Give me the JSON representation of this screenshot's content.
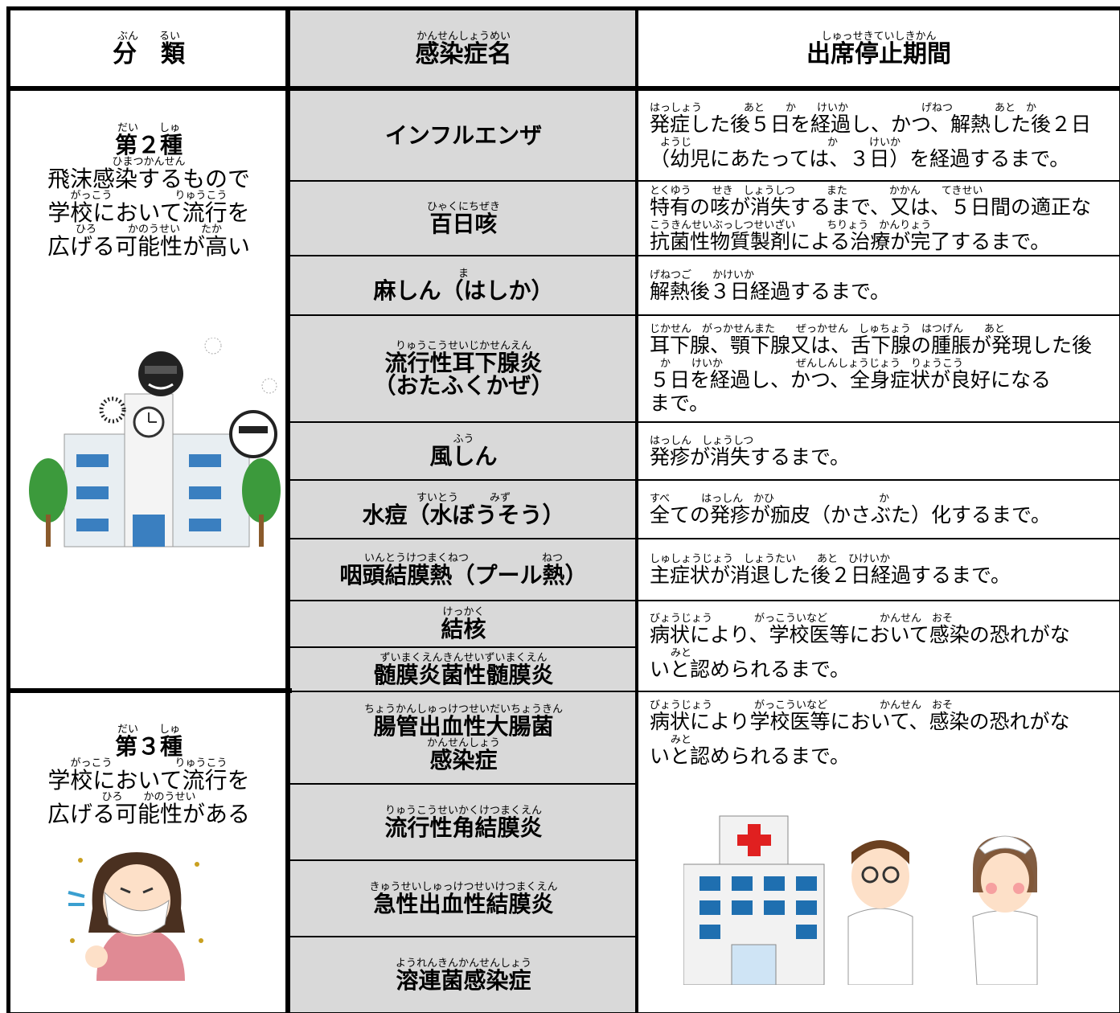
{
  "header": [
    [
      {
        "r": "ぶん　　るい",
        "t": "分　類"
      }
    ],
    [
      {
        "r": "かんせんしょうめい",
        "t": "感染症名"
      }
    ],
    [
      {
        "r": "しゅっせきていしきかん",
        "t": "出席停止期間"
      }
    ]
  ],
  "categories": [
    [
      {
        "r": "だい　　しゅ",
        "t": "第２種"
      },
      {
        "r": "ひまつかんせん",
        "t": "飛沫感染するもので"
      },
      {
        "r": "がっこう　　　　　　りゅうこう",
        "t": "学校において流行を"
      },
      {
        "r": "ひろ　　　かのうせい　　たか",
        "t": "広げる可能性が高い"
      }
    ],
    [
      {
        "r": "だい　　しゅ",
        "t": "第３種"
      },
      {
        "r": "がっこう　　　　　　りゅうこう",
        "t": "学校において流行を"
      },
      {
        "r": "ひろ　　かのうせい",
        "t": "広げる可能性がある"
      }
    ]
  ],
  "diseases": [
    [
      {
        "t": "インフルエンザ"
      }
    ],
    [
      {
        "r": "ひゃくにちぜき",
        "t": "百日咳"
      }
    ],
    [
      {
        "r": "ま",
        "t": "麻しん（はしか）"
      }
    ],
    [
      {
        "r": "りゅうこうせいじかせんえん",
        "t": "流行性耳下腺炎"
      },
      {
        "t": "（おたふくかぜ）"
      }
    ],
    [
      {
        "r": "ふう",
        "t": "風しん"
      }
    ],
    [
      {
        "r": "すいとう　　　みず",
        "t": "水痘（水ぼうそう）"
      }
    ],
    [
      {
        "r": "いんとうけつまくねつ　　　　　　　ねつ",
        "t": "咽頭結膜熱（プール熱）"
      }
    ],
    [
      {
        "r": "けっかく",
        "t": "結核"
      }
    ],
    [
      {
        "r": "ずいまくえんきんせいずいまくえん",
        "t": "髄膜炎菌性髄膜炎"
      }
    ],
    [
      {
        "r": "ちょうかんしゅっけつせいだいちょうきん",
        "t": "腸管出血性大腸菌"
      },
      {
        "r": "かんせんしょう",
        "t": "感染症"
      }
    ],
    [
      {
        "r": "りゅうこうせいかくけつまくえん",
        "t": "流行性角結膜炎"
      }
    ],
    [
      {
        "r": "きゅうせいしゅっけつせいけつまくえん",
        "t": "急性出血性結膜炎"
      }
    ],
    [
      {
        "r": "ようれんきんかんせんしょう",
        "t": "溶連菌感染症"
      }
    ]
  ],
  "periods": [
    [
      {
        "r": "はっしょう　　　　あと　　か　　けいか　　　　　　　げねつ　　　　あと　か",
        "t": "発症した後５日を経過し、かつ、解熱した後２日"
      },
      {
        "r": "　ようじ　　　　　　　　　　　　　か　　　けいか",
        "t": "（幼児にあたっては、３日）を経過するまで。"
      }
    ],
    [
      {
        "r": "とくゆう　　せき　しょうしつ　　　また　　　　かかん　　てきせい",
        "t": "特有の咳が消失するまで、又は、５日間の適正な"
      },
      {
        "r": "こうきんせいぶっしつせいざい　　　ちりょう　かんりょう",
        "t": "抗菌性物質製剤による治療が完了するまで。"
      }
    ],
    [
      {
        "r": "げねつご　　かけいか",
        "t": "解熱後３日経過するまで。"
      }
    ],
    [
      {
        "r": "じかせん　がっかせんまた　　ぜっかせん　しゅちょう　はつげん　　あと",
        "t": "耳下腺、顎下腺又は、舌下腺の腫脹が発現した後"
      },
      {
        "r": "　か　　けいか　　　　　　　ぜんしんしょうじょう　りょうこう",
        "t": "５日を経過し、かつ、全身症状が良好になる"
      },
      {
        "t": "まで。"
      }
    ],
    [
      {
        "r": "はっしん　しょうしつ",
        "t": "発疹が消失するまで。"
      }
    ],
    [
      {
        "r": "すべ　　　はっしん　かひ　　　　　　　　　　か",
        "t": "全ての発疹が痂皮（かさぶた）化するまで。"
      }
    ],
    [
      {
        "r": "しゅしょうじょう　しょうたい　　あと　ひけいか",
        "t": "主症状が消退した後２日経過するまで。"
      }
    ],
    [
      {
        "r": "びょうじょう　　　　がっこういなど　　　　　かんせん　おそ",
        "t": "病状により、学校医等において感染の恐れがな"
      },
      {
        "r": "　　みと",
        "t": "いと認められるまで。"
      }
    ],
    [
      {
        "r": "びょうじょう　　　　がっこういなど　　　　　かんせん　おそ",
        "t": "病状により学校医等において、感染の恐れがな"
      },
      {
        "r": "　　みと",
        "t": "いと認められるまで。"
      }
    ]
  ]
}
